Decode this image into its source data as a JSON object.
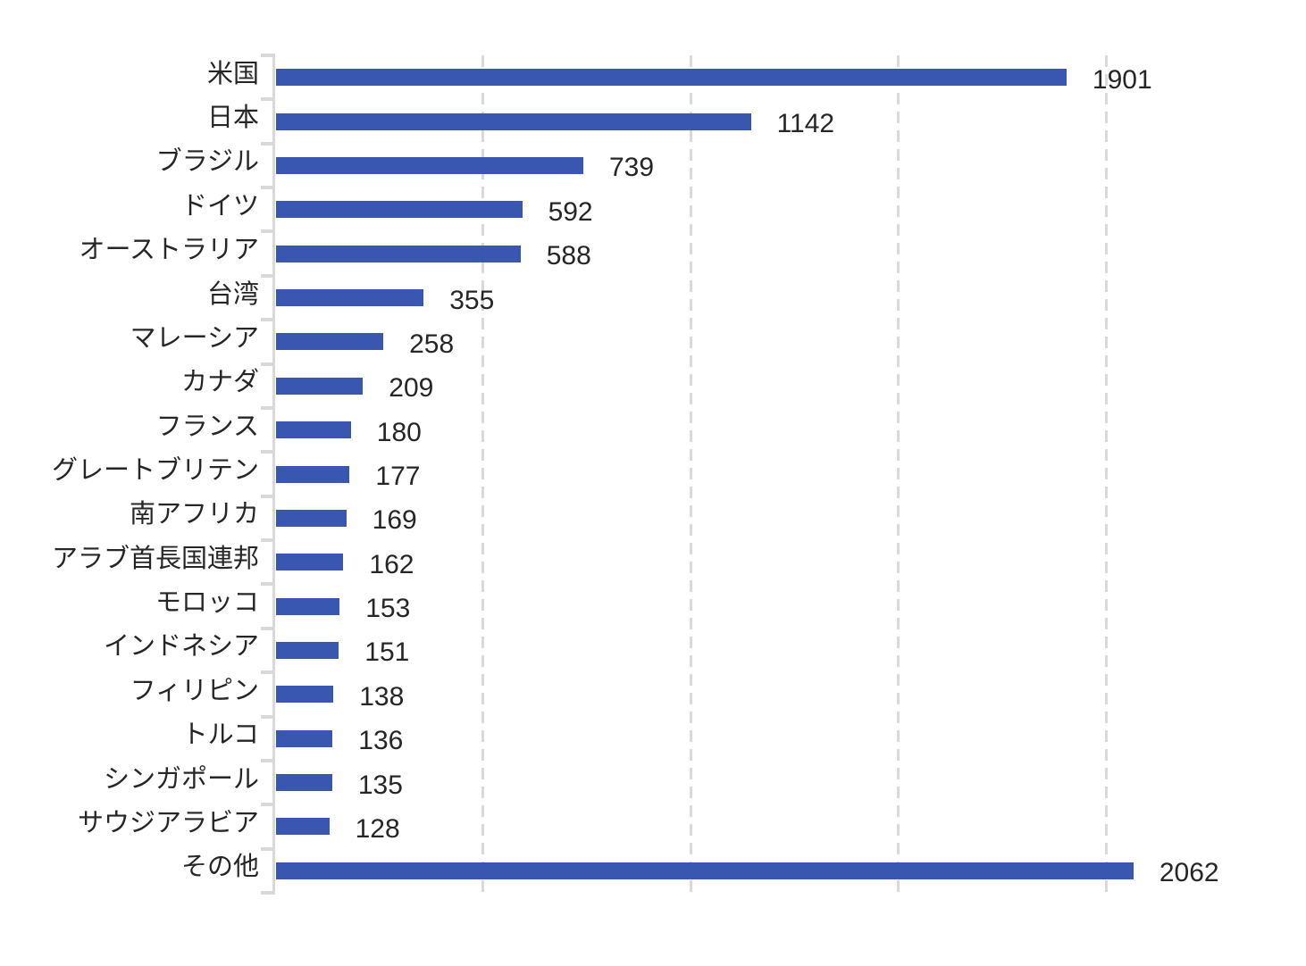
{
  "chart_data": {
    "type": "bar",
    "orientation": "horizontal",
    "title": "",
    "xlabel": "",
    "ylabel": "",
    "categories": [
      "米国",
      "日本",
      "ブラジル",
      "ドイツ",
      "オーストラリア",
      "台湾",
      "マレーシア",
      "カナダ",
      "フランス",
      "グレートブリテン",
      "南アフリカ",
      "アラブ首長国連邦",
      "モロッコ",
      "インドネシア",
      "フィリピン",
      "トルコ",
      "シンガポール",
      "サウジアラビア",
      "その他"
    ],
    "values": [
      1901,
      1142,
      739,
      592,
      588,
      355,
      258,
      209,
      180,
      177,
      169,
      162,
      153,
      151,
      138,
      136,
      135,
      128,
      2062
    ],
    "value_labels": [
      "1901",
      "1142",
      "739",
      "592",
      "588",
      "355",
      "258",
      "209",
      "180",
      "177",
      "169",
      "162",
      "153",
      "151",
      "138",
      "136",
      "135",
      "128",
      "2062"
    ],
    "xlim": [
      0,
      2200
    ],
    "gridlines_at": [
      500,
      1000,
      1500,
      2000
    ],
    "grid_style": "dashed-vertical",
    "x_tick_labels_shown": false,
    "value_labels_shown": true,
    "legend": "none",
    "colors": {
      "bar": "#3957b1",
      "gridline": "#d9d9d9",
      "axis": "#d9d9d9",
      "text": "#262626",
      "background": "#ffffff"
    }
  }
}
